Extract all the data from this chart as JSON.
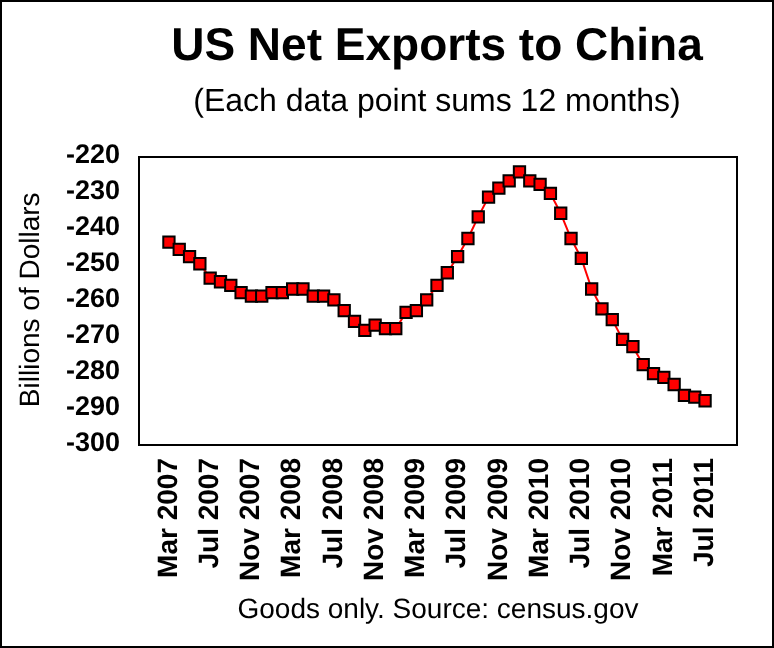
{
  "chart_data": {
    "type": "line",
    "title": "US Net Exports to China",
    "subtitle": "(Each data point sums 12 months)",
    "ylabel": "Billions of Dollars",
    "annotations": [
      "Goods only. Source: census.gov"
    ],
    "categories": [
      "Mar 2007",
      null,
      null,
      null,
      "Jul 2007",
      null,
      null,
      null,
      "Nov 2007",
      null,
      null,
      null,
      "Mar 2008",
      null,
      null,
      null,
      "Jul 2008",
      null,
      null,
      null,
      "Nov 2008",
      null,
      null,
      null,
      "Mar 2009",
      null,
      null,
      null,
      "Jul 2009",
      null,
      null,
      null,
      "Nov 2009",
      null,
      null,
      null,
      "Mar 2010",
      null,
      null,
      null,
      "Jul 2010",
      null,
      null,
      null,
      "Nov 2010",
      null,
      null,
      null,
      "Mar 2011",
      null,
      null,
      null,
      "Jul 2011"
    ],
    "color": "#ff0000",
    "values": [
      -244,
      -246,
      -248,
      -250,
      -254,
      -255,
      -256,
      -258,
      -259,
      -259,
      -258,
      -258,
      -257,
      -257,
      -259,
      -259,
      -260,
      -263,
      -266,
      -268.5,
      -267,
      -268,
      -268,
      -263.5,
      -263,
      -260,
      -256,
      -252.5,
      -248,
      -243,
      -237,
      -231.5,
      -229,
      -227,
      -224.5,
      -227,
      -228,
      -230.5,
      -236,
      -243,
      -248.5,
      -257,
      -262.5,
      -265.5,
      -271,
      -273,
      -278,
      -280.5,
      -281.5,
      -283.5,
      -286.5,
      -287,
      -288
    ],
    "ylim": [
      -300,
      -220
    ],
    "yticks": [
      -300,
      -290,
      -280,
      -270,
      -260,
      -250,
      -240,
      -230,
      -220
    ],
    "grid": false,
    "legend": false,
    "marker": "square",
    "line_style": "solid"
  }
}
